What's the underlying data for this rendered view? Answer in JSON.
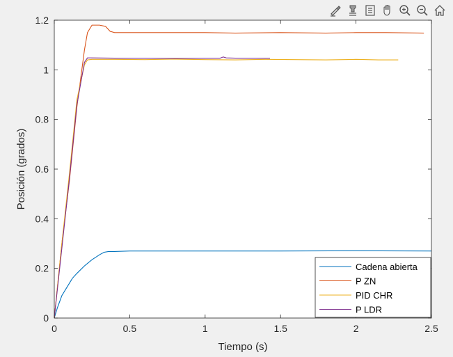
{
  "toolbar": {
    "icons": [
      "brush-icon",
      "data-cursor-icon",
      "legend-icon",
      "pan-hand-icon",
      "zoom-in-icon",
      "zoom-out-icon",
      "home-icon"
    ]
  },
  "chart_data": {
    "type": "line",
    "title": "",
    "xlabel": "Tiempo (s)",
    "ylabel": "Posición (grados)",
    "xlim": [
      0,
      2.5
    ],
    "ylim": [
      0,
      1.2
    ],
    "xticks": [
      "0",
      "0.5",
      "1",
      "1.5",
      "2",
      "2.5"
    ],
    "yticks": [
      "0",
      "0.2",
      "0.4",
      "0.6",
      "0.8",
      "1",
      "1.2"
    ],
    "xtick_values": [
      0,
      0.5,
      1,
      1.5,
      2,
      2.5
    ],
    "ytick_values": [
      0,
      0.2,
      0.4,
      0.6,
      0.8,
      1.0,
      1.2
    ],
    "grid": false,
    "legend_position": "bottom-right",
    "series": [
      {
        "name": "Cadena abierta",
        "color": "#0072BD",
        "x": [
          0,
          0.02,
          0.05,
          0.08,
          0.1,
          0.12,
          0.15,
          0.2,
          0.25,
          0.3,
          0.33,
          0.36,
          0.4,
          0.5,
          0.6,
          0.8,
          1.0,
          1.5,
          2.0,
          2.5
        ],
        "y": [
          0,
          0.04,
          0.09,
          0.12,
          0.14,
          0.16,
          0.18,
          0.21,
          0.235,
          0.255,
          0.265,
          0.268,
          0.268,
          0.27,
          0.27,
          0.27,
          0.27,
          0.27,
          0.271,
          0.27
        ]
      },
      {
        "name": "P ZN",
        "color": "#D95319",
        "x": [
          0,
          0.05,
          0.1,
          0.15,
          0.2,
          0.22,
          0.25,
          0.3,
          0.34,
          0.37,
          0.4,
          0.5,
          0.7,
          1.0,
          1.2,
          1.5,
          1.8,
          2.0,
          2.2,
          2.45
        ],
        "y": [
          0,
          0.3,
          0.55,
          0.85,
          1.08,
          1.15,
          1.18,
          1.18,
          1.175,
          1.155,
          1.15,
          1.15,
          1.15,
          1.15,
          1.148,
          1.15,
          1.148,
          1.15,
          1.15,
          1.148
        ]
      },
      {
        "name": "PID CHR",
        "color": "#EDB120",
        "x": [
          0,
          0.05,
          0.1,
          0.15,
          0.2,
          0.22,
          0.25,
          0.4,
          0.6,
          0.8,
          1.0,
          1.2,
          1.4,
          1.6,
          1.8,
          2.0,
          2.15,
          2.28
        ],
        "y": [
          0,
          0.3,
          0.58,
          0.88,
          1.02,
          1.04,
          1.042,
          1.042,
          1.041,
          1.043,
          1.041,
          1.04,
          1.042,
          1.041,
          1.04,
          1.042,
          1.04,
          1.04
        ]
      },
      {
        "name": "P LDR",
        "color": "#7E2F8E",
        "x": [
          0,
          0.05,
          0.1,
          0.15,
          0.2,
          0.22,
          0.25,
          0.4,
          0.6,
          0.8,
          1.0,
          1.1,
          1.12,
          1.14,
          1.2,
          1.3,
          1.43
        ],
        "y": [
          0,
          0.28,
          0.56,
          0.86,
          1.03,
          1.048,
          1.048,
          1.047,
          1.047,
          1.046,
          1.047,
          1.047,
          1.052,
          1.048,
          1.047,
          1.047,
          1.047
        ]
      }
    ]
  }
}
